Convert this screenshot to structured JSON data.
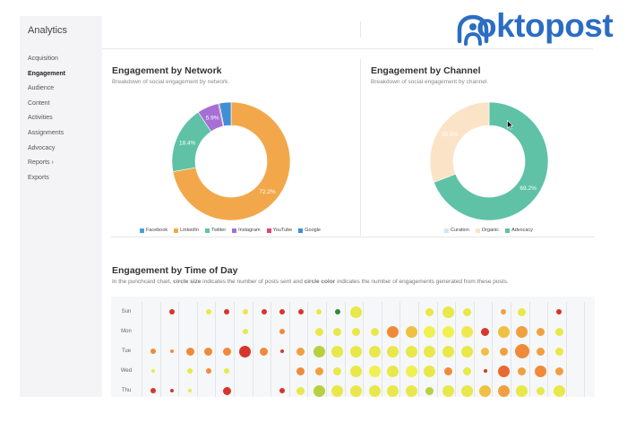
{
  "sidebar": {
    "title": "Analytics",
    "items": [
      {
        "label": "Acquisition",
        "active": false
      },
      {
        "label": "Engagement",
        "active": true
      },
      {
        "label": "Audience",
        "active": false
      },
      {
        "label": "Content",
        "active": false
      },
      {
        "label": "Activities",
        "active": false
      },
      {
        "label": "Assignments",
        "active": false
      },
      {
        "label": "Advocacy",
        "active": false
      },
      {
        "label": "Reports  ›",
        "active": false
      },
      {
        "label": "Exports",
        "active": false
      }
    ]
  },
  "logo": {
    "text": "oktopost",
    "color": "#2b6dc3"
  },
  "network_panel": {
    "title": "Engagement by Network",
    "subtitle": "Breakdown of social engagement by network.",
    "legend": [
      {
        "label": "Facebook",
        "color": "#4a9fd8"
      },
      {
        "label": "LinkedIn",
        "color": "#f2a84a"
      },
      {
        "label": "Twitter",
        "color": "#5fc2a6"
      },
      {
        "label": "Instagram",
        "color": "#a56fd6"
      },
      {
        "label": "YouTube",
        "color": "#e0457b"
      },
      {
        "label": "Google",
        "color": "#3f8fd6"
      }
    ]
  },
  "channel_panel": {
    "title": "Engagement by Channel",
    "subtitle": "Breakdown of social engagement by channel.",
    "legend": [
      {
        "label": "Curation",
        "color": "#cde6f4"
      },
      {
        "label": "Organic",
        "color": "#fbe3c7"
      },
      {
        "label": "Advocacy",
        "color": "#5fc2a6"
      }
    ]
  },
  "time_panel": {
    "title": "Engagement by Time of Day",
    "subtitle_parts": [
      "In the punchcard chart, ",
      "circle size",
      " indicates the number of posts sent and ",
      "circle color",
      " indicates the number of engagements generated from these posts."
    ]
  },
  "chart_data": [
    {
      "type": "pie",
      "title": "Engagement by Network",
      "slices": [
        {
          "name": "LinkedIn",
          "value": 72.2,
          "color": "#f2a84a",
          "label": "72.2%"
        },
        {
          "name": "Twitter",
          "value": 18.4,
          "color": "#5fc2a6",
          "label": "18.4%"
        },
        {
          "name": "Instagram",
          "value": 5.9,
          "color": "#a56fd6",
          "label": "5.9%"
        },
        {
          "name": "YouTube",
          "value": 0.3,
          "color": "#e0457b",
          "label": ""
        },
        {
          "name": "Google",
          "value": 3.2,
          "color": "#3f8fd6",
          "label": ""
        }
      ]
    },
    {
      "type": "pie",
      "title": "Engagement by Channel",
      "slices": [
        {
          "name": "Advocacy",
          "value": 69.2,
          "color": "#5fc2a6",
          "label": "69.2%"
        },
        {
          "name": "Organic",
          "value": 30.8,
          "color": "#fbe3c7",
          "label": "30.8%"
        }
      ]
    },
    {
      "type": "scatter",
      "title": "Engagement by Time of Day",
      "rows": [
        "Sun",
        "Mon",
        "Tue",
        "Wed",
        "Thu"
      ],
      "columns": 25,
      "cells": [
        [
          [
            2,
            2,
            "#d6362b"
          ],
          [
            4,
            2,
            "#e8e84a"
          ],
          [
            5,
            2,
            "#d6362b"
          ],
          [
            6,
            2,
            "#e8e84a"
          ],
          [
            7,
            2,
            "#d6362b"
          ],
          [
            8,
            2,
            "#d6362b"
          ],
          [
            9,
            2,
            "#d6362b"
          ],
          [
            10,
            2,
            "#e8e84a"
          ],
          [
            11,
            2,
            "#2e8b3c"
          ],
          [
            12,
            4,
            "#e8e84a"
          ],
          [
            16,
            3,
            "#e8e84a"
          ],
          [
            17,
            4,
            "#e8e84a"
          ],
          [
            18,
            3,
            "#e8e84a"
          ],
          [
            20,
            2,
            "#f0a040"
          ],
          [
            21,
            3,
            "#e8e84a"
          ],
          [
            23,
            2,
            "#d6362b"
          ]
        ],
        [
          [
            6,
            2,
            "#e8e84a"
          ],
          [
            8,
            2,
            "#f08a3a"
          ],
          [
            10,
            3,
            "#e8e84a"
          ],
          [
            11,
            3,
            "#e8e84a"
          ],
          [
            12,
            3,
            "#e8e84a"
          ],
          [
            13,
            3,
            "#e8e84a"
          ],
          [
            14,
            4,
            "#f08a3a"
          ],
          [
            15,
            4,
            "#f0c040"
          ],
          [
            16,
            4,
            "#f0f050"
          ],
          [
            17,
            4,
            "#f0f050"
          ],
          [
            18,
            4,
            "#f0e850"
          ],
          [
            19,
            3,
            "#d6362b"
          ],
          [
            20,
            4,
            "#f0c040"
          ],
          [
            21,
            4,
            "#f0a040"
          ],
          [
            22,
            3,
            "#f0a040"
          ],
          [
            23,
            3,
            "#e8e84a"
          ]
        ],
        [
          [
            1,
            2,
            "#f08a3a"
          ],
          [
            2,
            1,
            "#f08a3a"
          ],
          [
            3,
            3,
            "#f08a3a"
          ],
          [
            4,
            3,
            "#f08a3a"
          ],
          [
            5,
            3,
            "#f08a3a"
          ],
          [
            6,
            4,
            "#d6362b"
          ],
          [
            7,
            3,
            "#f08a3a"
          ],
          [
            8,
            1,
            "#d6362b"
          ],
          [
            9,
            3,
            "#f0a040"
          ],
          [
            10,
            4,
            "#b8d040"
          ],
          [
            11,
            4,
            "#e8e84a"
          ],
          [
            12,
            4,
            "#e8e84a"
          ],
          [
            13,
            4,
            "#e8e84a"
          ],
          [
            14,
            4,
            "#e8e84a"
          ],
          [
            15,
            4,
            "#e8e84a"
          ],
          [
            16,
            4,
            "#e8e84a"
          ],
          [
            17,
            4,
            "#e8e84a"
          ],
          [
            18,
            4,
            "#e8e84a"
          ],
          [
            19,
            3,
            "#f0c040"
          ],
          [
            20,
            3,
            "#f0a040"
          ],
          [
            21,
            5,
            "#f08a3a"
          ],
          [
            22,
            3,
            "#f0a040"
          ],
          [
            23,
            3,
            "#e8e84a"
          ]
        ],
        [
          [
            1,
            1,
            "#e8e84a"
          ],
          [
            3,
            2,
            "#e8e84a"
          ],
          [
            4,
            2,
            "#f08a3a"
          ],
          [
            5,
            2,
            "#e8e84a"
          ],
          [
            9,
            3,
            "#f08a3a"
          ],
          [
            10,
            3,
            "#f0a040"
          ],
          [
            11,
            3,
            "#e8e84a"
          ],
          [
            12,
            4,
            "#e8e84a"
          ],
          [
            13,
            4,
            "#f0f050"
          ],
          [
            14,
            4,
            "#e8e84a"
          ],
          [
            15,
            4,
            "#f0f050"
          ],
          [
            16,
            4,
            "#e8e84a"
          ],
          [
            17,
            3,
            "#f08a3a"
          ],
          [
            18,
            3,
            "#e8e84a"
          ],
          [
            19,
            1,
            "#d6362b"
          ],
          [
            20,
            4,
            "#e86a30"
          ],
          [
            21,
            3,
            "#f0a040"
          ],
          [
            22,
            4,
            "#f08a3a"
          ],
          [
            23,
            3,
            "#f0a040"
          ]
        ],
        [
          [
            1,
            2,
            "#d6362b"
          ],
          [
            2,
            1,
            "#d6362b"
          ],
          [
            3,
            1,
            "#e8e84a"
          ],
          [
            5,
            3,
            "#d6362b"
          ],
          [
            8,
            2,
            "#d6362b"
          ],
          [
            9,
            3,
            "#e8e84a"
          ],
          [
            10,
            4,
            "#b8d040"
          ],
          [
            11,
            4,
            "#e8e84a"
          ],
          [
            12,
            4,
            "#e8e84a"
          ],
          [
            13,
            4,
            "#e8e84a"
          ],
          [
            14,
            4,
            "#e8e84a"
          ],
          [
            15,
            4,
            "#e8e84a"
          ],
          [
            16,
            3,
            "#b8d040"
          ],
          [
            17,
            4,
            "#e8e84a"
          ],
          [
            18,
            4,
            "#e8e84a"
          ],
          [
            19,
            4,
            "#f0c040"
          ],
          [
            20,
            4,
            "#f0a040"
          ],
          [
            21,
            4,
            "#e8e84a"
          ],
          [
            22,
            3,
            "#e8e84a"
          ],
          [
            23,
            4,
            "#e8e84a"
          ]
        ]
      ]
    }
  ]
}
